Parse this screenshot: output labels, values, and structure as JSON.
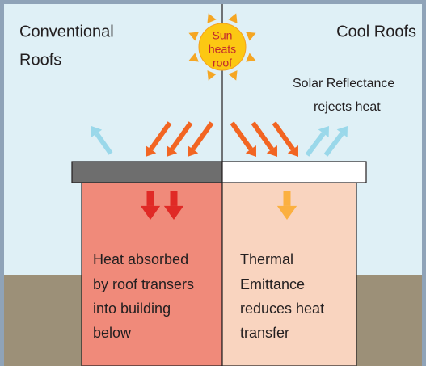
{
  "left": {
    "title": [
      "Conventional",
      "Roofs"
    ],
    "body": [
      "Heat absorbed",
      "by roof transers",
      "into building",
      "below"
    ]
  },
  "right": {
    "title": "Cool Roofs",
    "note": [
      "Solar Reflectance",
      "rejects heat"
    ],
    "body": [
      "Thermal",
      "Emittance",
      "reduces heat",
      "transfer"
    ]
  },
  "sun": {
    "label": [
      "Sun",
      "heats",
      "roof"
    ]
  }
}
